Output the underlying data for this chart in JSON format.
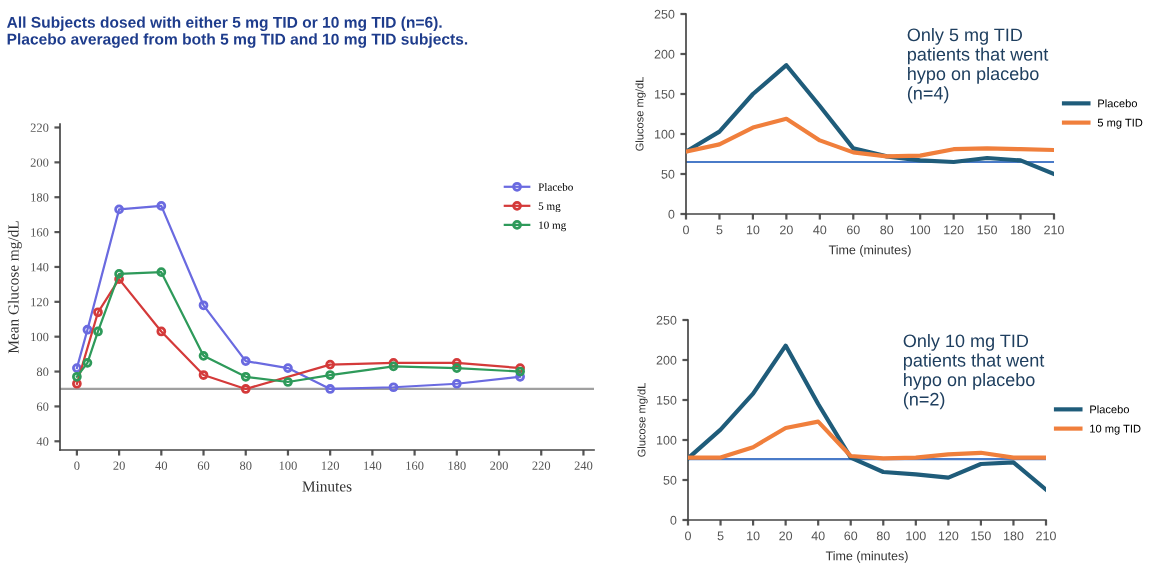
{
  "chart_data": [
    {
      "type": "line",
      "title": "All Subjects dosed with either 5 mg TID or 10 mg TID (n=6).\nPlacebo averaged from both 5 mg TID and 10 mg TID subjects.",
      "xlabel": "Minutes",
      "ylabel": "Mean Glucose mg/dL",
      "xlim": [
        -8,
        245
      ],
      "xticks": [
        0,
        20,
        40,
        60,
        80,
        100,
        120,
        140,
        160,
        180,
        200,
        220,
        240
      ],
      "ylim": [
        35,
        222
      ],
      "yticks": [
        40,
        60,
        80,
        100,
        120,
        140,
        160,
        180,
        200,
        220
      ],
      "marker": "circle",
      "legend": "top right",
      "grid": false,
      "ref_lines": [
        {
          "axis": "y",
          "value": 70,
          "color": "#a0a0a0"
        }
      ],
      "series": [
        {
          "name": "Placebo",
          "color": "#6a6ae0",
          "x": [
            0,
            5,
            20,
            40,
            60,
            80,
            100,
            120,
            150,
            180,
            210
          ],
          "values": [
            82,
            104,
            173,
            175,
            118,
            86,
            82,
            70,
            71,
            73,
            77
          ]
        },
        {
          "name": "5 mg",
          "color": "#d43a3a",
          "x": [
            0,
            10,
            20,
            40,
            60,
            80,
            120,
            150,
            180,
            210
          ],
          "values": [
            73,
            114,
            133,
            103,
            78,
            70,
            84,
            85,
            85,
            82
          ]
        },
        {
          "name": "10 mg",
          "color": "#2e9a5a",
          "x": [
            0,
            5,
            10,
            20,
            40,
            60,
            80,
            100,
            120,
            150,
            180,
            210
          ],
          "values": [
            77,
            85,
            103,
            136,
            137,
            89,
            77,
            74,
            78,
            83,
            82,
            80
          ]
        }
      ]
    },
    {
      "type": "line",
      "xlabel": "Time (minutes)",
      "ylabel": "Glucose mg/dL",
      "categories": [
        "0",
        "5",
        "10",
        "20",
        "40",
        "60",
        "80",
        "100",
        "120",
        "150",
        "180",
        "210"
      ],
      "ylim": [
        0,
        250
      ],
      "yticks": [
        0,
        50,
        100,
        150,
        200,
        250
      ],
      "legend": "right",
      "grid": false,
      "annotations": [
        "Only 5 mg TID\npatients that went\nhypo on placebo\n(n=4)"
      ],
      "ref_lines": [
        {
          "axis": "y",
          "value": 65,
          "color": "#4a7bc8"
        }
      ],
      "series": [
        {
          "name": "Placebo",
          "color": "#1f5c7a",
          "values": [
            78,
            103,
            150,
            186,
            135,
            82,
            72,
            67,
            65,
            70,
            67,
            50
          ]
        },
        {
          "name": "5 mg TID",
          "color": "#f07f3c",
          "values": [
            78,
            87,
            108,
            119,
            92,
            77,
            72,
            73,
            81,
            82,
            81,
            80
          ]
        }
      ]
    },
    {
      "type": "line",
      "xlabel": "Time (minutes)",
      "ylabel": "Glucose mg/dL",
      "categories": [
        "0",
        "5",
        "10",
        "20",
        "40",
        "60",
        "80",
        "100",
        "120",
        "150",
        "180",
        "210"
      ],
      "ylim": [
        0,
        250
      ],
      "yticks": [
        0,
        50,
        100,
        150,
        200,
        250
      ],
      "legend": "right",
      "grid": false,
      "annotations": [
        "Only 10 mg TID\npatients that went\nhypo on placebo\n(n=2)"
      ],
      "ref_lines": [
        {
          "axis": "y",
          "value": 76,
          "color": "#4a7bc8"
        }
      ],
      "series": [
        {
          "name": "Placebo",
          "color": "#1f5c7a",
          "values": [
            77,
            113,
            158,
            218,
            145,
            78,
            60,
            57,
            53,
            70,
            72,
            38
          ]
        },
        {
          "name": "10 mg TID",
          "color": "#f07f3c",
          "values": [
            78,
            78,
            91,
            115,
            123,
            80,
            77,
            78,
            82,
            84,
            78,
            78
          ]
        }
      ]
    }
  ]
}
